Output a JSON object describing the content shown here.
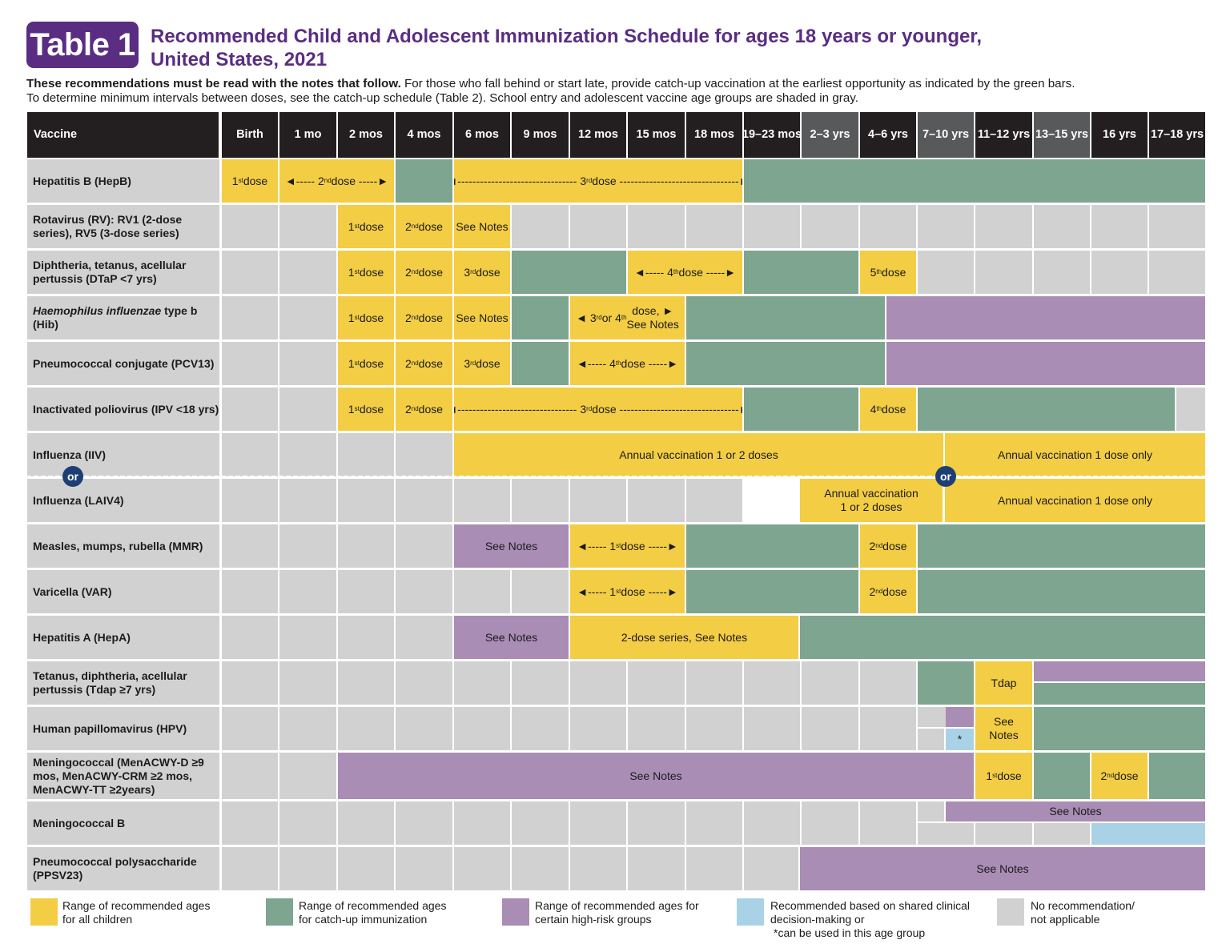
{
  "header": {
    "badge": "Table 1",
    "title_line1": "Recommended Child and Adolescent Immunization Schedule for ages 18 years or younger,",
    "title_line2": "United States, 2021",
    "intro_bold": "These recommendations must be read with the notes that follow.",
    "intro_rest": " For those who fall behind or start late, provide catch-up vaccination at the earliest opportunity as indicated by the green bars.",
    "intro_line2": "To determine minimum intervals between doses, see the catch-up schedule (Table 2). School entry and adolescent vaccine age groups are shaded in gray."
  },
  "columns": [
    "Vaccine",
    "Birth",
    "1 mo",
    "2 mos",
    "4 mos",
    "6 mos",
    "9 mos",
    "12 mos",
    "15 mos",
    "18 mos",
    "19–23 mos",
    "2–3 yrs",
    "4–6 yrs",
    "7–10 yrs",
    "11–12 yrs",
    "13–15 yrs",
    "16 yrs",
    "17–18 yrs"
  ],
  "shaded_columns": [
    11,
    13,
    15
  ],
  "rows": [
    "Hepatitis B (HepB)",
    "Rotavirus (RV): RV1 (2-dose series), RV5 (3-dose series)",
    "Diphtheria, tetanus, acellular pertussis (DTaP <7 yrs)",
    "Haemophilus influenzae type b (Hib)",
    "Pneumococcal conjugate (PCV13)",
    "Inactivated poliovirus (IPV <18 yrs)",
    "Influenza (IIV)",
    "Influenza (LAIV4)",
    "Measles, mumps, rubella (MMR)",
    "Varicella (VAR)",
    "Hepatitis A (HepA)",
    "Tetanus, diphtheria, acellular pertussis (Tdap ≥7 yrs)",
    "Human papillomavirus (HPV)",
    "Meningococcal (MenACWY-D ≥9 mos, MenACWY-CRM ≥2 mos, MenACWY-TT ≥2years)",
    "Meningococcal B",
    "Pneumococcal polysaccharide (PPSV23)"
  ],
  "labels": {
    "dose1": "1st dose",
    "dose2": "2nd dose",
    "dose3": "3rd dose",
    "dose4": "4th dose",
    "dose5": "5th dose",
    "see_notes": "See Notes",
    "hib_range": "3rd or 4th dose, See Notes",
    "annual_1_or_2": "Annual vaccination 1 or 2 doses",
    "annual_1_only": "Annual vaccination 1 dose only",
    "hepa_series": "2-dose series, See Notes",
    "tdap": "Tdap",
    "or": "or",
    "asterisk": "*"
  },
  "legend": [
    {
      "line1": "Range of recommended ages",
      "line2": "for all children",
      "color": "#f3cd44"
    },
    {
      "line1": "Range of recommended ages",
      "line2": "for catch-up immunization",
      "color": "#7ea590"
    },
    {
      "line1": "Range of recommended ages for",
      "line2": "certain high-risk groups",
      "color": "#a98db5"
    },
    {
      "line1": "Recommended based on shared clinical",
      "line2": "decision-making or",
      "line3": "*can be used in this age group",
      "color": "#a9d2e6"
    },
    {
      "line1": "No recommendation/",
      "line2": "not applicable",
      "color": "#d1d1d1"
    }
  ],
  "colors": {
    "yellow": "#f3cd44",
    "teal": "#7ea590",
    "purple": "#a98db5",
    "blue": "#a9d2e6",
    "gray": "#d1d1d1",
    "brand": "#5a2d82",
    "or_badge": "#1d3f74"
  }
}
